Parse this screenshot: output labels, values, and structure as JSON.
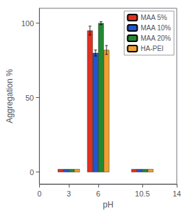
{
  "chart_data": {
    "type": "bar",
    "x": [
      3,
      6,
      10.5
    ],
    "series": [
      {
        "name": "MAA 5%",
        "color": "#e03020",
        "values": [
          2,
          95,
          2
        ],
        "errors": [
          0,
          3,
          0
        ]
      },
      {
        "name": "MAA 10%",
        "color": "#2255cc",
        "values": [
          2,
          80,
          2
        ],
        "errors": [
          0,
          2,
          0
        ]
      },
      {
        "name": "MAA 20%",
        "color": "#228833",
        "values": [
          2,
          100,
          2
        ],
        "errors": [
          0,
          1,
          0
        ]
      },
      {
        "name": "HA-PEI",
        "color": "#f0a030",
        "values": [
          2,
          82,
          2
        ],
        "errors": [
          0,
          3,
          0
        ]
      }
    ],
    "xlabel": "pH",
    "ylabel": "Aggregation %",
    "xlim": [
      0,
      14
    ],
    "xticks": [
      0,
      3,
      6,
      10.5,
      14
    ],
    "ylim": [
      -8,
      110
    ],
    "yticks": [
      0,
      50,
      100
    ],
    "grid": false,
    "legend": "upper right"
  }
}
